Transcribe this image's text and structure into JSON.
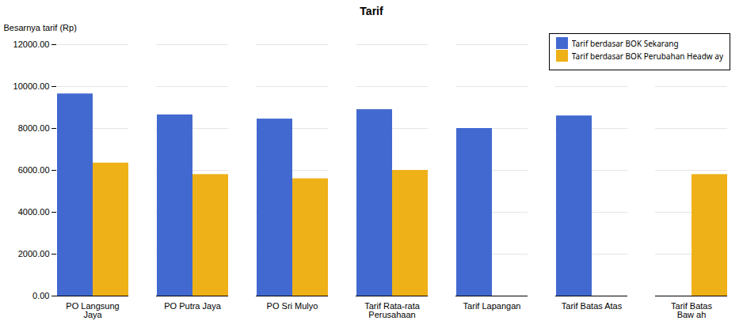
{
  "chart_data": {
    "type": "bar",
    "title": "Tarif",
    "ylabel": "Besarnya tarif (Rp)",
    "categories": [
      "PO Langsung\nJaya",
      "PO Putra Jaya",
      "PO Sri Mulyo",
      "Tarif Rata-rata\nPerusahaan",
      "Tarif Lapangan",
      "Tarif Batas Atas",
      "Tarif Batas\nBaw ah"
    ],
    "series": [
      {
        "name": "Tarif berdasar BOK Sekarang",
        "values": [
          9650,
          8650,
          8450,
          8900,
          8000,
          8600,
          0
        ]
      },
      {
        "name": "Tarif berdasar BOK Perubahan Headw ay",
        "values": [
          6350,
          5800,
          5600,
          6000,
          0,
          0,
          5800
        ]
      }
    ],
    "ylim": [
      0,
      12000
    ],
    "yticks": [
      {
        "value": 0,
        "label": "0.00"
      },
      {
        "value": 2000,
        "label": "2000.00"
      },
      {
        "value": 4000,
        "label": "4000.00"
      },
      {
        "value": 6000,
        "label": "6000.00"
      },
      {
        "value": 8000,
        "label": "8000.00"
      },
      {
        "value": 10000,
        "label": "10000.00"
      },
      {
        "value": 12000,
        "label": "12000.00"
      }
    ],
    "grid": true,
    "legend": "upper right"
  }
}
